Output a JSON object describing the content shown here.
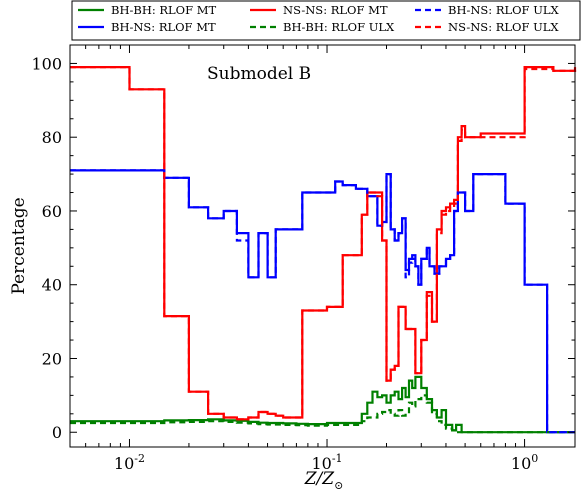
{
  "chart_data": {
    "type": "line",
    "annotation": "Submodel B",
    "xlabel_main": "Z/Z",
    "xlabel_sub": "⊙",
    "ylabel": "Percentage",
    "xscale": "log",
    "xlim": [
      0.005,
      1.8
    ],
    "ylim": [
      -4,
      105
    ],
    "xticks": [
      {
        "value": 0.01,
        "base": "10",
        "exp": "-2"
      },
      {
        "value": 0.1,
        "base": "10",
        "exp": "-1"
      },
      {
        "value": 1,
        "base": "10",
        "exp": "0"
      }
    ],
    "yticks": [
      0,
      20,
      40,
      60,
      80,
      100
    ],
    "legend_position": "top (above plot)",
    "series": [
      {
        "name": "BH-BH: RLOF MT",
        "color": "#008000",
        "dash": "solid",
        "x": [
          0.005,
          0.01,
          0.015,
          0.02,
          0.025,
          0.03,
          0.035,
          0.04,
          0.045,
          0.05,
          0.055,
          0.06,
          0.07,
          0.08,
          0.1,
          0.15,
          0.16,
          0.17,
          0.18,
          0.19,
          0.2,
          0.21,
          0.22,
          0.23,
          0.24,
          0.25,
          0.26,
          0.27,
          0.28,
          0.3,
          0.32,
          0.34,
          0.36,
          0.38,
          0.4,
          0.43,
          0.45,
          0.48,
          0.5,
          1.0,
          1.3,
          1.8
        ],
        "y": [
          3,
          3,
          3.2,
          3.3,
          3.5,
          3.2,
          3.1,
          2.8,
          2.6,
          2.5,
          2.5,
          2.4,
          2.3,
          2.2,
          2.5,
          5,
          8,
          11,
          9.5,
          10,
          8,
          10,
          11,
          9,
          12,
          9.5,
          14,
          12,
          15,
          12,
          9,
          6,
          4,
          6,
          2,
          0.5,
          2,
          0,
          0,
          0,
          0,
          0
        ]
      },
      {
        "name": "BH-NS: RLOF MT",
        "color": "#0000ff",
        "dash": "solid",
        "x": [
          0.005,
          0.01,
          0.015,
          0.02,
          0.022,
          0.025,
          0.028,
          0.03,
          0.035,
          0.038,
          0.04,
          0.045,
          0.05,
          0.055,
          0.07,
          0.075,
          0.1,
          0.11,
          0.12,
          0.14,
          0.16,
          0.18,
          0.19,
          0.2,
          0.21,
          0.22,
          0.23,
          0.24,
          0.25,
          0.26,
          0.27,
          0.28,
          0.29,
          0.3,
          0.32,
          0.33,
          0.34,
          0.35,
          0.37,
          0.4,
          0.42,
          0.44,
          0.46,
          0.5,
          0.55,
          0.6,
          0.65,
          0.8,
          1.0,
          1.3,
          1.8
        ],
        "y": [
          71,
          71,
          69,
          61,
          61,
          58,
          58,
          60,
          54,
          54,
          42,
          54,
          42,
          55,
          55,
          65,
          65,
          68,
          67,
          66,
          64,
          56,
          57,
          70,
          55,
          52,
          54,
          58,
          44,
          47,
          48,
          45,
          40,
          47,
          50,
          45,
          45,
          43,
          45,
          47,
          48,
          60,
          65,
          60,
          70,
          70,
          70,
          62,
          40,
          0,
          0
        ]
      },
      {
        "name": "NS-NS: RLOF MT",
        "color": "#ff0000",
        "dash": "solid",
        "x": [
          0.005,
          0.01,
          0.015,
          0.02,
          0.025,
          0.03,
          0.035,
          0.04,
          0.045,
          0.05,
          0.055,
          0.06,
          0.07,
          0.075,
          0.1,
          0.12,
          0.15,
          0.16,
          0.18,
          0.19,
          0.2,
          0.21,
          0.22,
          0.23,
          0.25,
          0.28,
          0.3,
          0.32,
          0.34,
          0.36,
          0.38,
          0.4,
          0.42,
          0.44,
          0.46,
          0.48,
          0.5,
          0.6,
          0.8,
          1.0,
          1.4,
          1.8
        ],
        "y": [
          99,
          93,
          31.5,
          11,
          5,
          4,
          3.5,
          4,
          5.5,
          5,
          4.5,
          4,
          4,
          33,
          34,
          48,
          59,
          65,
          65,
          52,
          14,
          17,
          18,
          34,
          28,
          16,
          25,
          38,
          30,
          55,
          60,
          61,
          62,
          63,
          80,
          83,
          80,
          81,
          81,
          99,
          98,
          99
        ]
      },
      {
        "name": "BH-BH: RLOF ULX",
        "color": "#008000",
        "dash": "dashed",
        "x": [
          0.005,
          0.01,
          0.015,
          0.02,
          0.025,
          0.03,
          0.035,
          0.04,
          0.045,
          0.05,
          0.055,
          0.06,
          0.07,
          0.08,
          0.1,
          0.15,
          0.16,
          0.18,
          0.19,
          0.2,
          0.21,
          0.22,
          0.23,
          0.24,
          0.25,
          0.26,
          0.27,
          0.28,
          0.3,
          0.32,
          0.34,
          0.36,
          0.38,
          0.4,
          0.43,
          0.45,
          0.48,
          0.5,
          1.0,
          1.3,
          1.8
        ],
        "y": [
          2.5,
          2.5,
          2.7,
          2.8,
          3,
          2.8,
          2.6,
          2.4,
          2.2,
          2.1,
          2.1,
          2.0,
          1.9,
          1.8,
          2,
          3,
          4,
          5,
          5.5,
          6,
          5,
          4.5,
          6,
          4.5,
          5,
          8,
          7,
          9,
          10,
          8,
          5,
          3,
          2,
          1,
          0.5,
          0,
          0,
          0,
          0,
          0,
          0
        ]
      },
      {
        "name": "BH-NS: RLOF ULX",
        "color": "#0000ff",
        "dash": "dashed",
        "x": [
          0.005,
          0.01,
          0.015,
          0.02,
          0.022,
          0.025,
          0.028,
          0.03,
          0.035,
          0.038,
          0.04,
          0.045,
          0.05,
          0.055,
          0.07,
          0.075,
          0.1,
          0.11,
          0.12,
          0.14,
          0.16,
          0.18,
          0.19,
          0.2,
          0.21,
          0.22,
          0.23,
          0.24,
          0.25,
          0.26,
          0.27,
          0.28,
          0.29,
          0.3,
          0.32,
          0.33,
          0.34,
          0.35,
          0.37,
          0.4,
          0.42,
          0.44,
          0.46,
          0.5,
          0.55,
          0.6,
          0.65,
          0.8,
          1.0,
          1.3,
          1.8
        ],
        "y": [
          71,
          71,
          69,
          61,
          61,
          58,
          58,
          60,
          52,
          52,
          42,
          54,
          42,
          55,
          55,
          65,
          65,
          68,
          67,
          66,
          64,
          56,
          57,
          70,
          55,
          52,
          54,
          58,
          42,
          46,
          47,
          45,
          40,
          47,
          50,
          45,
          45,
          43,
          45,
          47,
          48,
          60,
          65,
          60,
          70,
          70,
          70,
          62,
          40,
          0,
          0
        ]
      },
      {
        "name": "NS-NS: RLOF ULX",
        "color": "#ff0000",
        "dash": "dashed",
        "x": [
          0.005,
          0.01,
          0.015,
          0.02,
          0.025,
          0.03,
          0.035,
          0.04,
          0.045,
          0.05,
          0.055,
          0.06,
          0.07,
          0.075,
          0.1,
          0.12,
          0.15,
          0.16,
          0.18,
          0.19,
          0.2,
          0.21,
          0.22,
          0.23,
          0.25,
          0.28,
          0.3,
          0.32,
          0.34,
          0.36,
          0.38,
          0.4,
          0.42,
          0.44,
          0.46,
          0.48,
          0.5,
          0.6,
          0.8,
          1.0,
          1.4,
          1.8
        ],
        "y": [
          99,
          93,
          31.5,
          11,
          5,
          4,
          3.5,
          4,
          5.5,
          5,
          4.5,
          4,
          4,
          33,
          34,
          48,
          59,
          65,
          64,
          52,
          14,
          17,
          18,
          34,
          28,
          16,
          25,
          37,
          30,
          54,
          59,
          60,
          61,
          62,
          79,
          82,
          80,
          80,
          80,
          98.5,
          98,
          98.5
        ]
      }
    ]
  }
}
